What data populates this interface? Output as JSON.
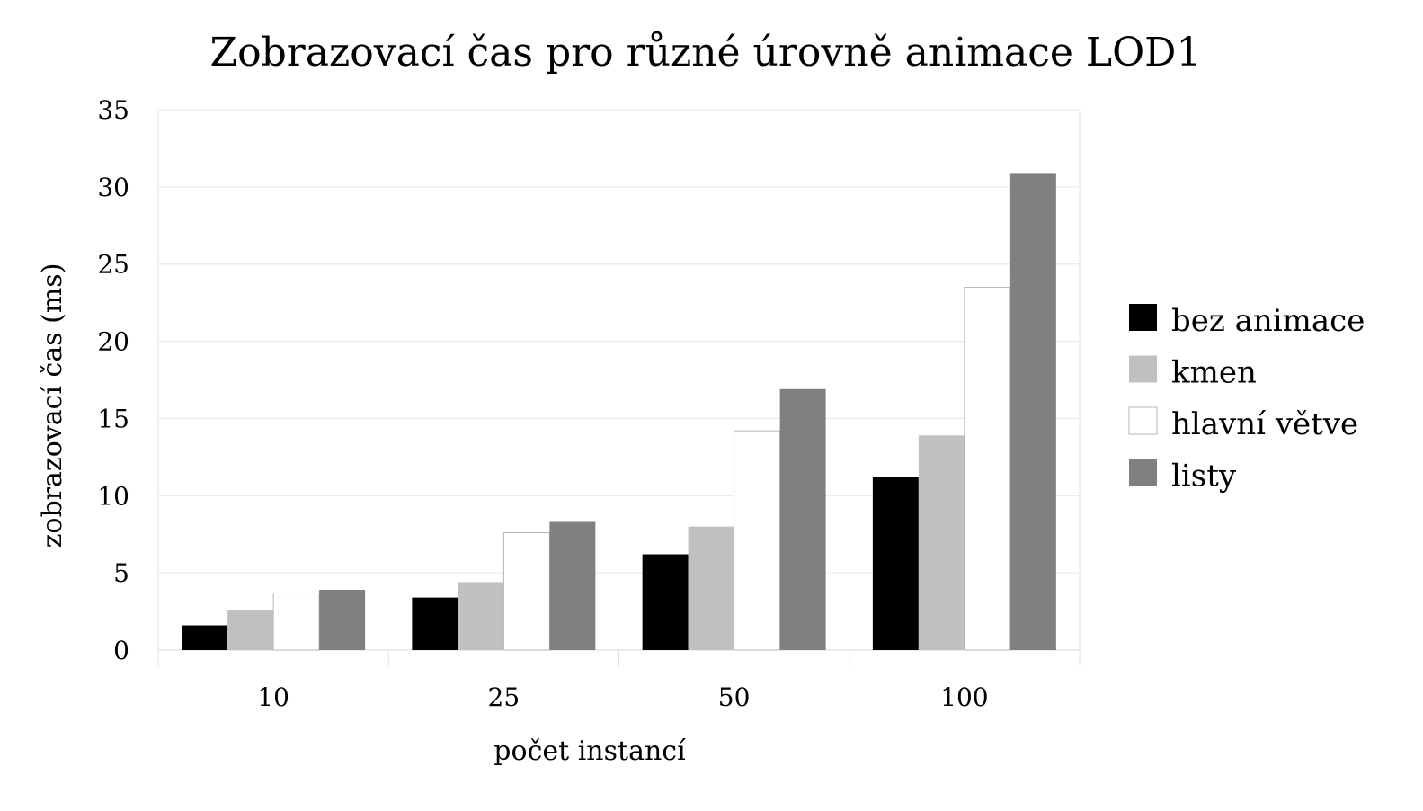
{
  "chart_data": {
    "type": "bar",
    "title": "Zobrazovací čas pro různé úrovně animace LOD1",
    "xlabel": "počet instancí",
    "ylabel": "zobrazovací čas (ms)",
    "categories": [
      "10",
      "25",
      "50",
      "100"
    ],
    "ylim": [
      0,
      35
    ],
    "yticks": [
      0,
      5,
      10,
      15,
      20,
      25,
      30,
      35
    ],
    "ytick_labels": [
      "0",
      "5",
      "10",
      "15",
      "20",
      "25",
      "30",
      "35"
    ],
    "grid": true,
    "legend_position": "right",
    "series": [
      {
        "name": "bez animace",
        "color": "#000000",
        "values": [
          1.6,
          3.4,
          6.2,
          11.2
        ]
      },
      {
        "name": "kmen",
        "color": "#c0c0c0",
        "values": [
          2.6,
          4.4,
          8.0,
          13.9
        ]
      },
      {
        "name": "hlavní větve",
        "color": "#ffffff",
        "values": [
          3.7,
          7.6,
          14.2,
          23.5
        ]
      },
      {
        "name": "listy",
        "color": "#808080",
        "values": [
          3.9,
          8.3,
          16.9,
          30.9
        ]
      }
    ]
  }
}
